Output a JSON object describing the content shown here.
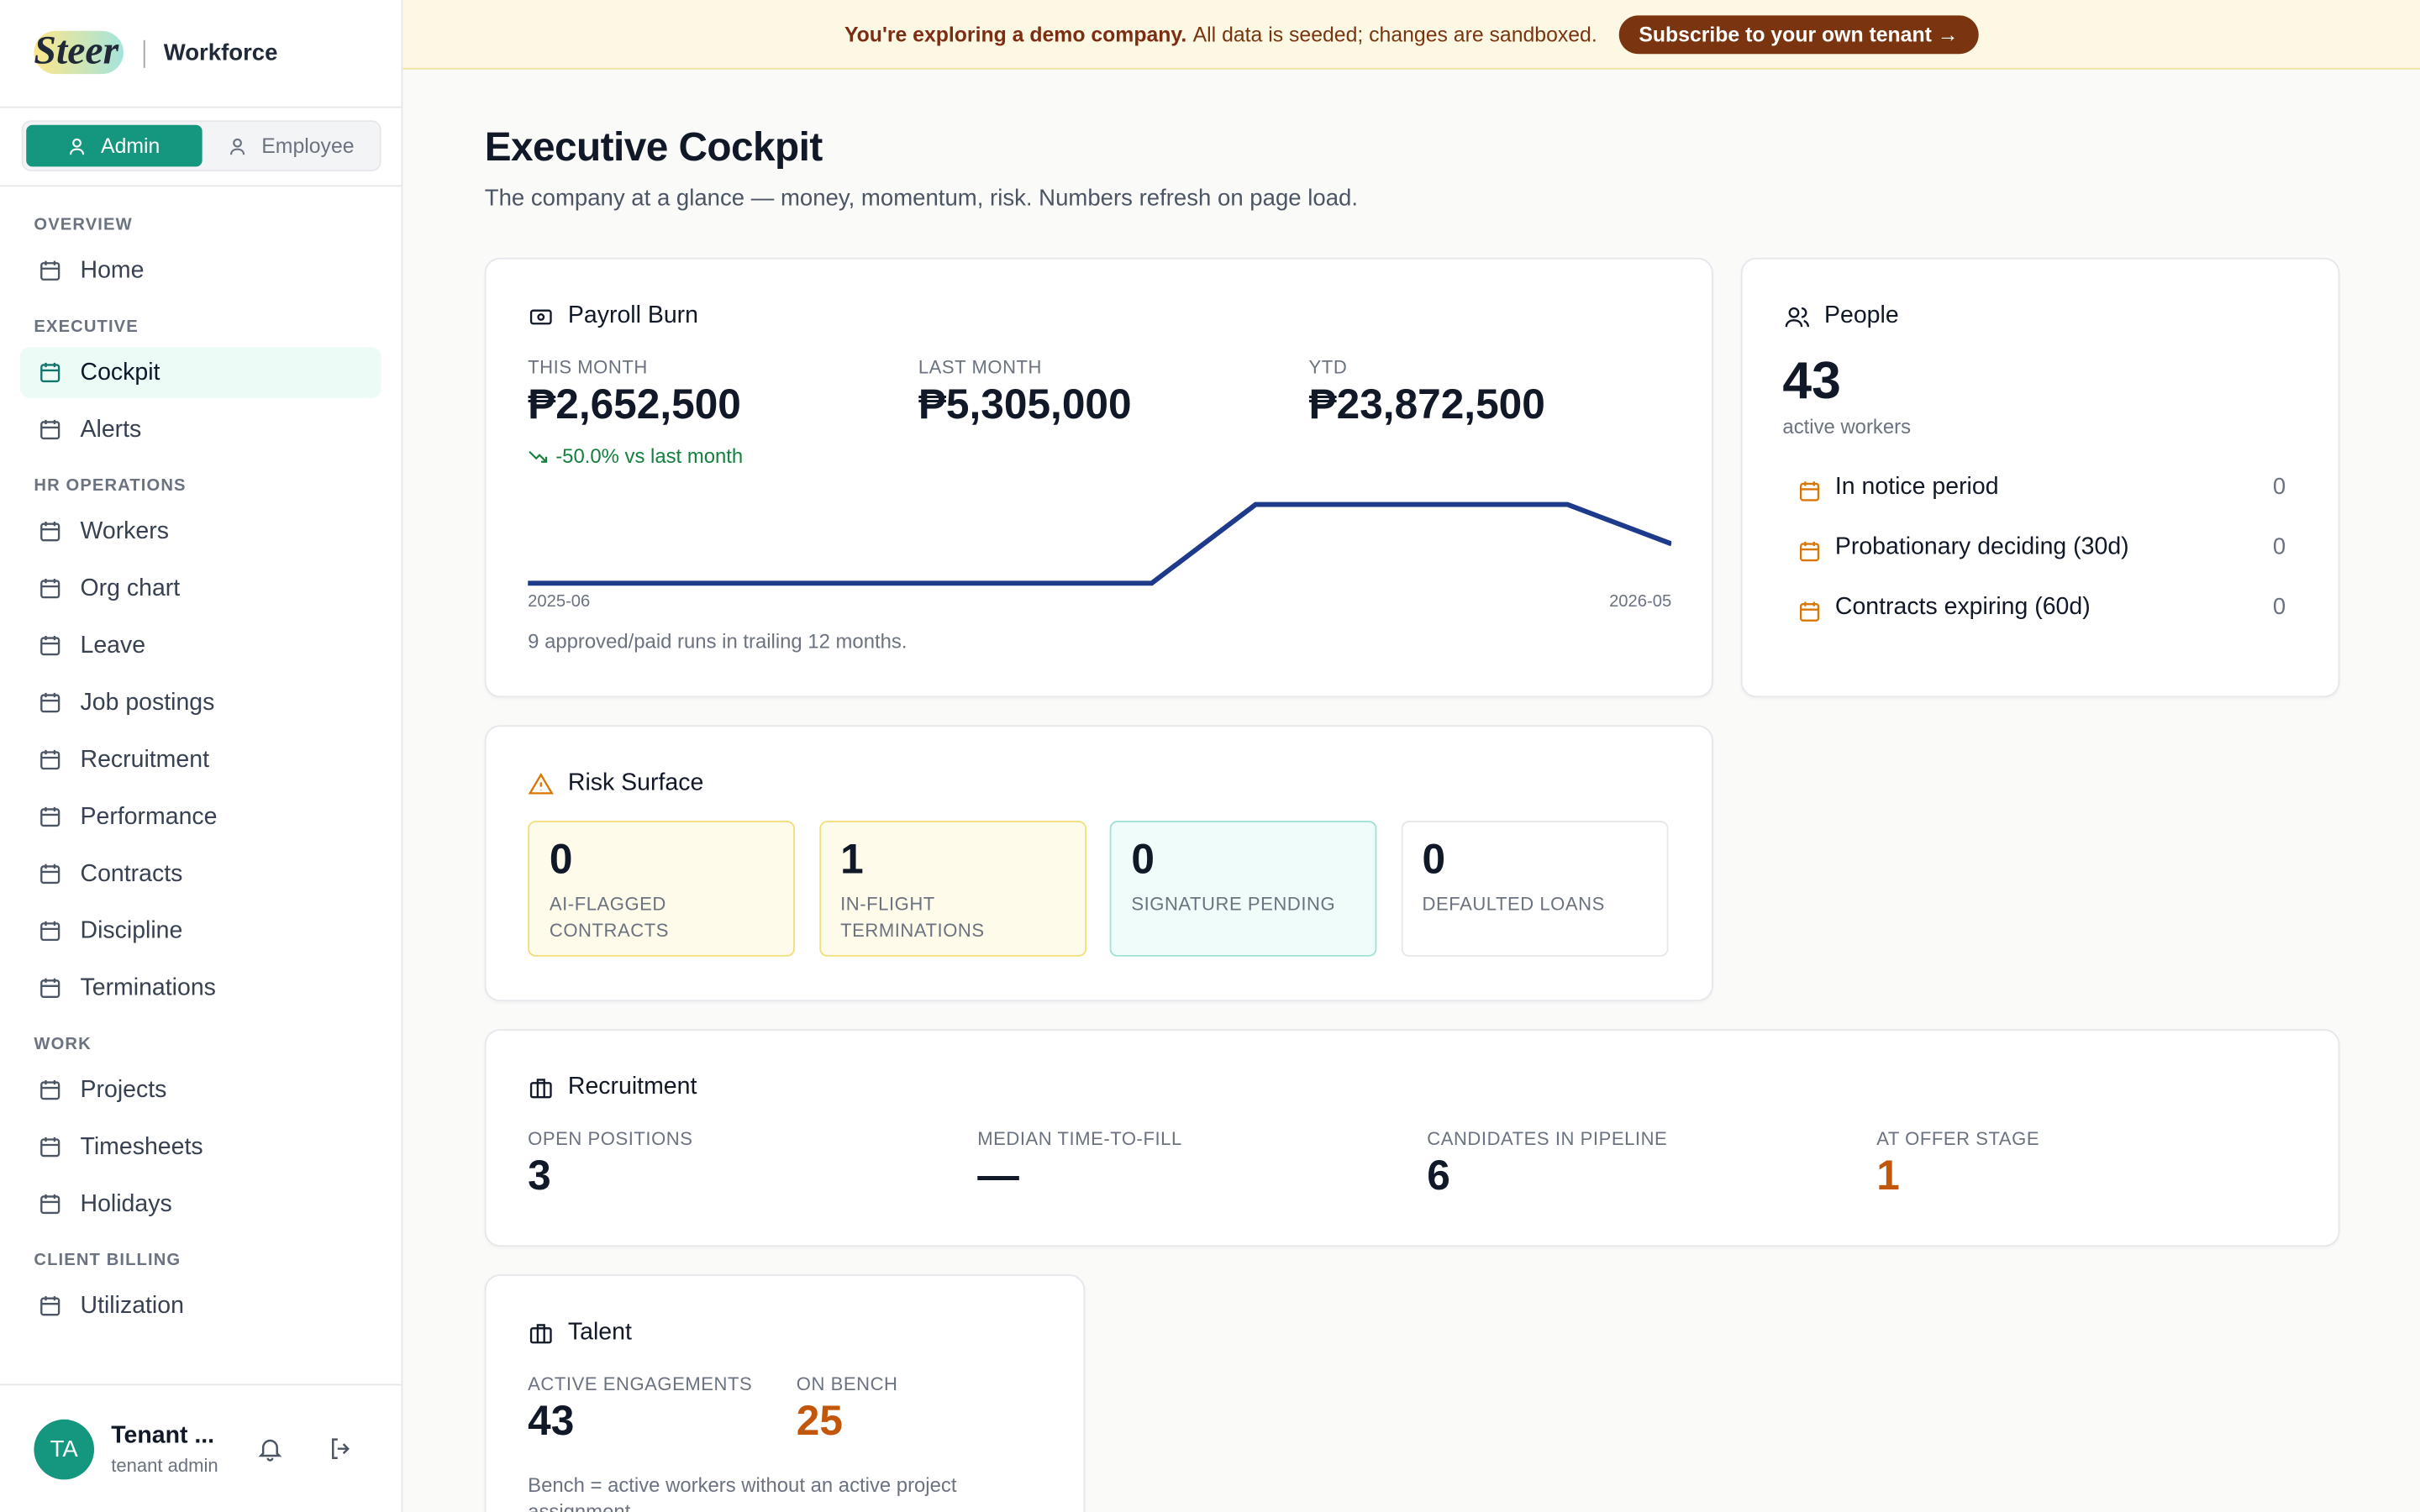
{
  "sidebar": {
    "brand": "Steer",
    "product": "Workforce",
    "roles": [
      "Admin",
      "Employee"
    ],
    "active_role": "Admin",
    "active_item": "Cockpit",
    "nav": [
      {
        "section": "OVERVIEW",
        "items": [
          "Home"
        ]
      },
      {
        "section": "EXECUTIVE",
        "items": [
          "Cockpit",
          "Alerts"
        ]
      },
      {
        "section": "HR OPERATIONS",
        "items": [
          "Workers",
          "Org chart",
          "Leave",
          "Job postings",
          "Recruitment",
          "Performance",
          "Contracts",
          "Discipline",
          "Terminations"
        ]
      },
      {
        "section": "WORK",
        "items": [
          "Projects",
          "Timesheets",
          "Holidays"
        ]
      },
      {
        "section": "CLIENT BILLING",
        "items": [
          "Utilization"
        ]
      }
    ],
    "user": {
      "initials": "TA",
      "name": "Tenant ...",
      "role": "tenant admin"
    }
  },
  "banner": {
    "bold": "You're exploring a demo company.",
    "text": "All data is seeded; changes are sandboxed.",
    "button": "Subscribe to your own tenant →"
  },
  "header": {
    "title": "Executive Cockpit",
    "subtitle": "The company at a glance — money, momentum, risk. Numbers refresh on page load."
  },
  "payroll": {
    "title": "Payroll Burn",
    "stats": [
      {
        "label": "THIS MONTH",
        "value": "₱2,652,500"
      },
      {
        "label": "LAST MONTH",
        "value": "₱5,305,000"
      },
      {
        "label": "YTD",
        "value": "₱23,872,500"
      }
    ],
    "change": "-50.0% vs last month",
    "footnote": "9 approved/paid runs in trailing 12 months."
  },
  "chart_data": {
    "type": "line",
    "categories": [
      "2025-06",
      null,
      null,
      null,
      null,
      null,
      null,
      null,
      null,
      null,
      null,
      "2026-05"
    ],
    "values": [
      0,
      0,
      0,
      0,
      0,
      0,
      0,
      5305000,
      5305000,
      5305000,
      5305000,
      2652500
    ],
    "ylim": [
      0,
      5305000
    ],
    "color": "#1e3a8a"
  },
  "people": {
    "title": "People",
    "count": 43,
    "caption": "active workers",
    "rows": [
      {
        "label": "In notice period",
        "value": 0
      },
      {
        "label": "Probationary deciding (30d)",
        "value": 0
      },
      {
        "label": "Contracts expiring (60d)",
        "value": 0
      }
    ]
  },
  "risk": {
    "title": "Risk Surface",
    "tiles": [
      {
        "value": 0,
        "label": "AI-FLAGGED CONTRACTS"
      },
      {
        "value": 1,
        "label": "IN-FLIGHT TERMINATIONS"
      },
      {
        "value": 0,
        "label": "SIGNATURE PENDING"
      },
      {
        "value": 0,
        "label": "DEFAULTED LOANS"
      }
    ]
  },
  "recruitment": {
    "title": "Recruitment",
    "stats": [
      {
        "label": "OPEN POSITIONS",
        "value": 3
      },
      {
        "label": "MEDIAN TIME-TO-FILL",
        "value": "—"
      },
      {
        "label": "CANDIDATES IN PIPELINE",
        "value": 6
      },
      {
        "label": "AT OFFER STAGE",
        "value": 1
      }
    ]
  },
  "talent": {
    "title": "Talent",
    "stats": [
      {
        "label": "ACTIVE ENGAGEMENTS",
        "value": 43
      },
      {
        "label": "ON BENCH",
        "value": 25
      }
    ],
    "note": "Bench = active workers without an active project assignment."
  }
}
